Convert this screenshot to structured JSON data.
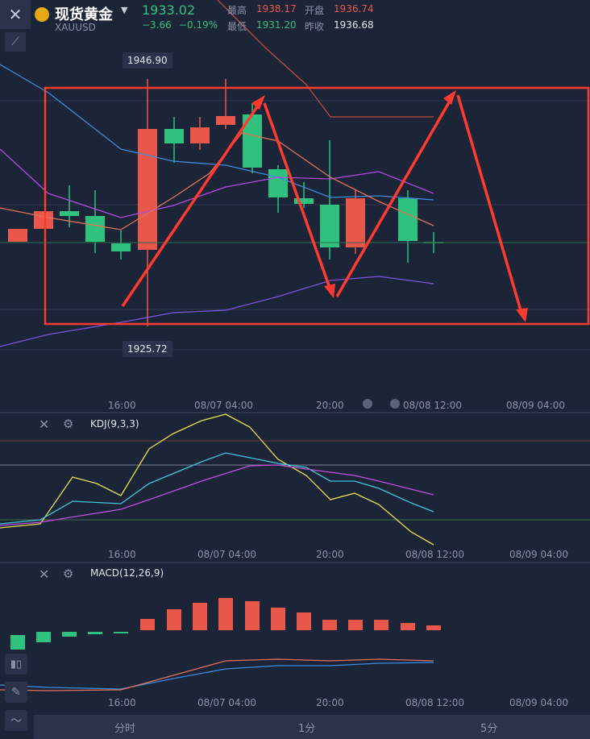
{
  "header": {
    "symbol_name": "现货黄金",
    "symbol_code": "XAUUSD",
    "last_price": "1933.02",
    "change": "−3.66",
    "change_pct": "−0.19%",
    "high_label": "最高",
    "high_value": "1938.17",
    "open_label": "开盘",
    "open_value": "1936.74",
    "low_label": "最低",
    "low_value": "1931.20",
    "prev_close_label": "昨收",
    "prev_close_value": "1936.68"
  },
  "price_tags": {
    "max": "1946.90",
    "min": "1925.72"
  },
  "time_axis": [
    "16:00",
    "08/07 04:00",
    "20:00",
    "08/08 12:00",
    "08/09 04:00"
  ],
  "kdj": {
    "title": "KDJ(9,3,3)"
  },
  "macd": {
    "title": "MACD(12,26,9)"
  },
  "tabs": [
    "分时",
    "1分",
    "5分"
  ],
  "colors": {
    "up": "#e8574a",
    "down": "#2ec27e",
    "bg": "#1c2438",
    "annotation": "#ff3b30"
  },
  "icons": [
    "close-icon",
    "draw-tool-icon",
    "gold-coin-icon",
    "dropdown-caret-icon",
    "hide-icon",
    "settings-icon",
    "candlestick-icon",
    "pencil-icon",
    "indicator-icon"
  ]
}
